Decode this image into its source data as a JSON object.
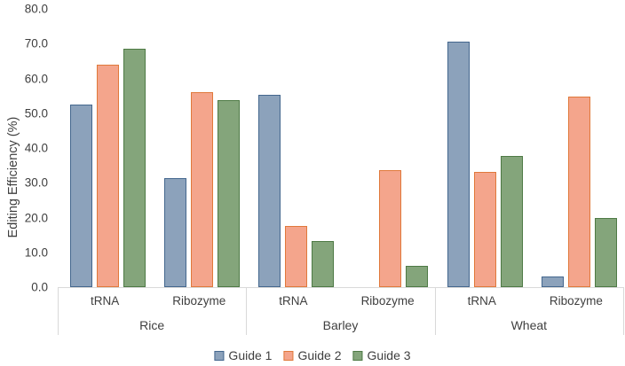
{
  "chart_data": {
    "type": "bar",
    "title": "",
    "ylabel": "Editing Efficiency (%)",
    "xlabel": "",
    "ylim": [
      0,
      80
    ],
    "ytick_labels": [
      "0.0",
      "10.0",
      "20.0",
      "30.0",
      "40.0",
      "50.0",
      "60.0",
      "70.0",
      "80.0"
    ],
    "grid": false,
    "legend_position": "bottom",
    "axis_color": "#D9D9D9",
    "text_color": "#3F3F3F",
    "series": [
      {
        "name": "Guide 1",
        "fill": "#8CA2BB",
        "border": "#44678E"
      },
      {
        "name": "Guide 2",
        "fill": "#F4A58C",
        "border": "#E0793B"
      },
      {
        "name": "Guide 3",
        "fill": "#84A57B",
        "border": "#4E7A45"
      }
    ],
    "groups": [
      {
        "label": "Rice",
        "subgroups": [
          {
            "label": "tRNA",
            "values": [
              52.5,
              64.0,
              68.5
            ]
          },
          {
            "label": "Ribozyme",
            "values": [
              31.3,
              56.0,
              53.8
            ]
          }
        ]
      },
      {
        "label": "Barley",
        "subgroups": [
          {
            "label": "tRNA",
            "values": [
              55.2,
              17.6,
              13.2
            ]
          },
          {
            "label": "Ribozyme",
            "values": [
              0,
              33.6,
              6.0
            ]
          }
        ]
      },
      {
        "label": "Wheat",
        "subgroups": [
          {
            "label": "tRNA",
            "values": [
              70.5,
              33.0,
              37.8
            ]
          },
          {
            "label": "Ribozyme",
            "values": [
              3.0,
              54.8,
              20.0
            ]
          }
        ]
      }
    ]
  }
}
